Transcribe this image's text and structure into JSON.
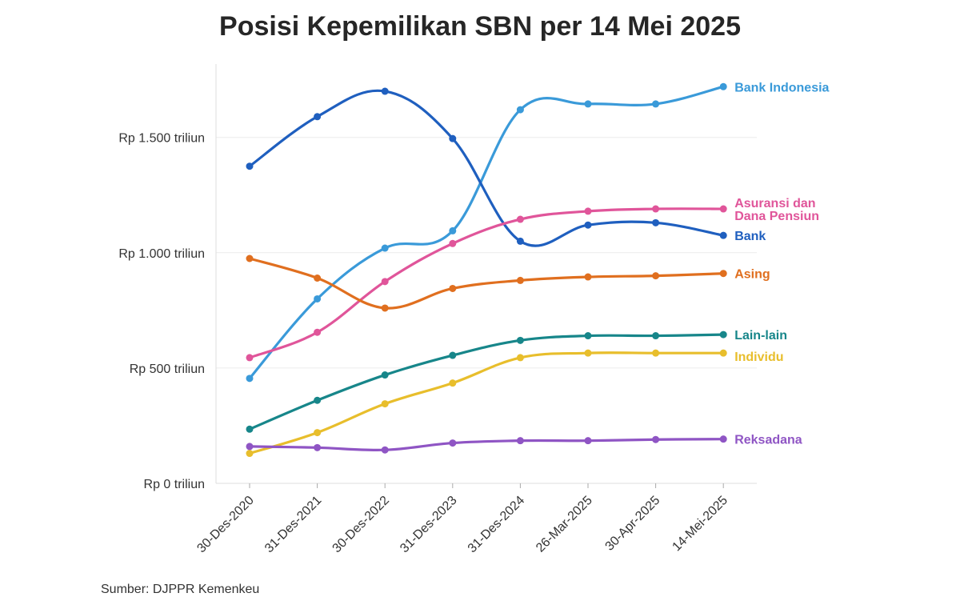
{
  "chart_data": {
    "type": "line",
    "title": "Posisi Kepemilikan SBN per 14 Mei 2025",
    "source": "Sumber: DJPPR Kemenkeu",
    "xlabel": "",
    "ylabel": "",
    "ylim": [
      0,
      1800
    ],
    "grid": true,
    "categories": [
      "30-Des-2020",
      "31-Des-2021",
      "30-Des-2022",
      "31-Des-2023",
      "31-Des-2024",
      "26-Mar-2025",
      "30-Apr-2025",
      "14-Mei-2025"
    ],
    "yticks": [
      {
        "value": 0,
        "label": "Rp 0 triliun"
      },
      {
        "value": 500,
        "label": "Rp 500 triliun"
      },
      {
        "value": 1000,
        "label": "Rp 1.000 triliun"
      },
      {
        "value": 1500,
        "label": "Rp 1.500 triliun"
      }
    ],
    "series": [
      {
        "name": "Bank Indonesia",
        "label_lines": [
          "Bank Indonesia"
        ],
        "color": "#3a9ad9",
        "values": [
          455,
          800,
          1020,
          1095,
          1620,
          1645,
          1645,
          1720
        ]
      },
      {
        "name": "Bank",
        "label_lines": [
          "Bank"
        ],
        "color": "#1f5fbf",
        "values": [
          1375,
          1590,
          1700,
          1495,
          1050,
          1120,
          1130,
          1075
        ]
      },
      {
        "name": "Asuransi dan Dana Pensiun",
        "label_lines": [
          "Asuransi dan",
          "Dana Pensiun"
        ],
        "color": "#e0559a",
        "values": [
          545,
          655,
          875,
          1040,
          1145,
          1180,
          1190,
          1190
        ]
      },
      {
        "name": "Asing",
        "label_lines": [
          "Asing"
        ],
        "color": "#e06f1f",
        "values": [
          975,
          890,
          760,
          845,
          880,
          895,
          900,
          910
        ]
      },
      {
        "name": "Lain-lain",
        "label_lines": [
          "Lain-lain"
        ],
        "color": "#17868a",
        "values": [
          235,
          360,
          470,
          555,
          620,
          640,
          640,
          645
        ]
      },
      {
        "name": "Individu",
        "label_lines": [
          "Individu"
        ],
        "color": "#e8be2c",
        "values": [
          130,
          220,
          345,
          435,
          545,
          565,
          565,
          565
        ]
      },
      {
        "name": "Reksadana",
        "label_lines": [
          "Reksadana"
        ],
        "color": "#8f55c4",
        "values": [
          160,
          155,
          145,
          175,
          185,
          185,
          190,
          192
        ]
      }
    ]
  }
}
